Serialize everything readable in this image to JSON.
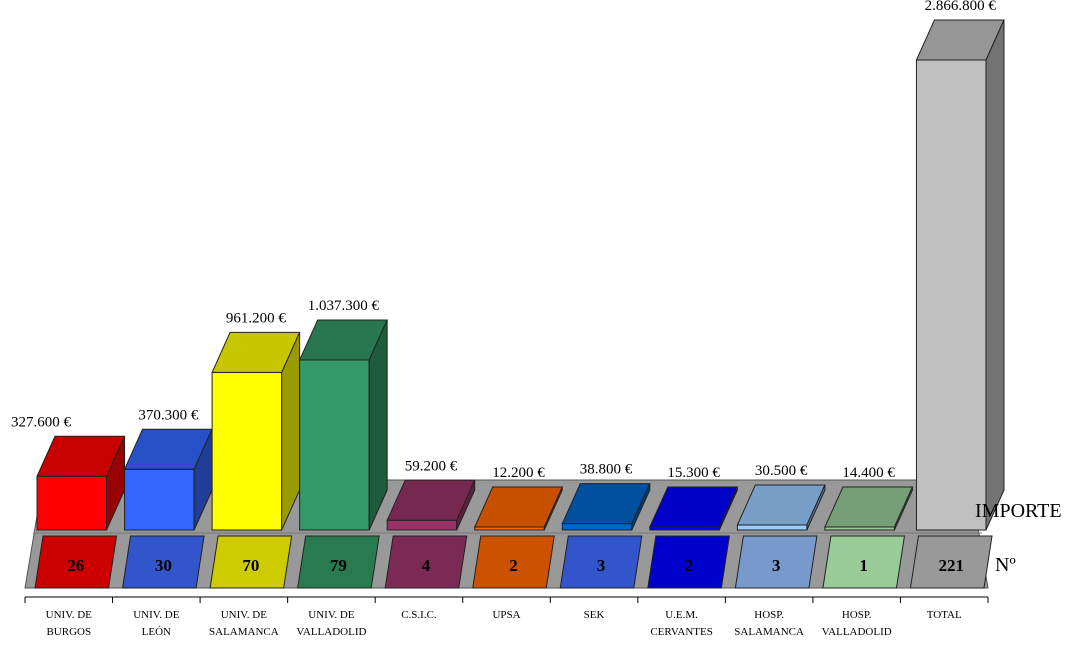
{
  "chart_data": {
    "type": "bar",
    "categories": [
      [
        "UNIV. DE",
        "BURGOS"
      ],
      [
        "UNIV. DE",
        "LEÓN"
      ],
      [
        "UNIV. DE",
        "SALAMANCA"
      ],
      [
        "UNIV. DE",
        "VALLADOLID"
      ],
      [
        "C.S.I.C."
      ],
      [
        "UPSA"
      ],
      [
        "SEK"
      ],
      [
        "U.E.M.",
        "CERVANTES"
      ],
      [
        "HOSP.",
        "SALAMANCA"
      ],
      [
        "HOSP.",
        "VALLADOLID"
      ],
      [
        "TOTAL"
      ]
    ],
    "series": [
      {
        "name": "IMPORTE",
        "values": [
          327600,
          370300,
          961200,
          1037300,
          59200,
          12200,
          38800,
          15300,
          30500,
          14400,
          2866800
        ],
        "labels": [
          "327.600 €",
          "370.300 €",
          "961.200 €",
          "1.037.300 €",
          "59.200 €",
          "12.200 €",
          "38.800 €",
          "15.300 €",
          "30.500 €",
          "14.400 €",
          "2.866.800 €"
        ]
      },
      {
        "name": "Nº",
        "values": [
          26,
          30,
          70,
          79,
          4,
          2,
          3,
          2,
          3,
          1,
          221
        ],
        "labels": [
          "26",
          "30",
          "70",
          "79",
          "4",
          "2",
          "3",
          "2",
          "3",
          "1",
          "221"
        ]
      }
    ],
    "colors": {
      "importe": [
        "#ff0000",
        "#3366ff",
        "#ffff00",
        "#339966",
        "#993366",
        "#ff6600",
        "#0066cc",
        "#0000ff",
        "#99ccff",
        "#99cc99",
        "#c0c0c0"
      ],
      "count": [
        "#cc0000",
        "#3355cc",
        "#cccc00",
        "#2a7a50",
        "#7a2a55",
        "#cc5200",
        "#3355cc",
        "#0000cc",
        "#7799cc",
        "#99cc99",
        "#999999"
      ],
      "floor": "#999999"
    }
  }
}
